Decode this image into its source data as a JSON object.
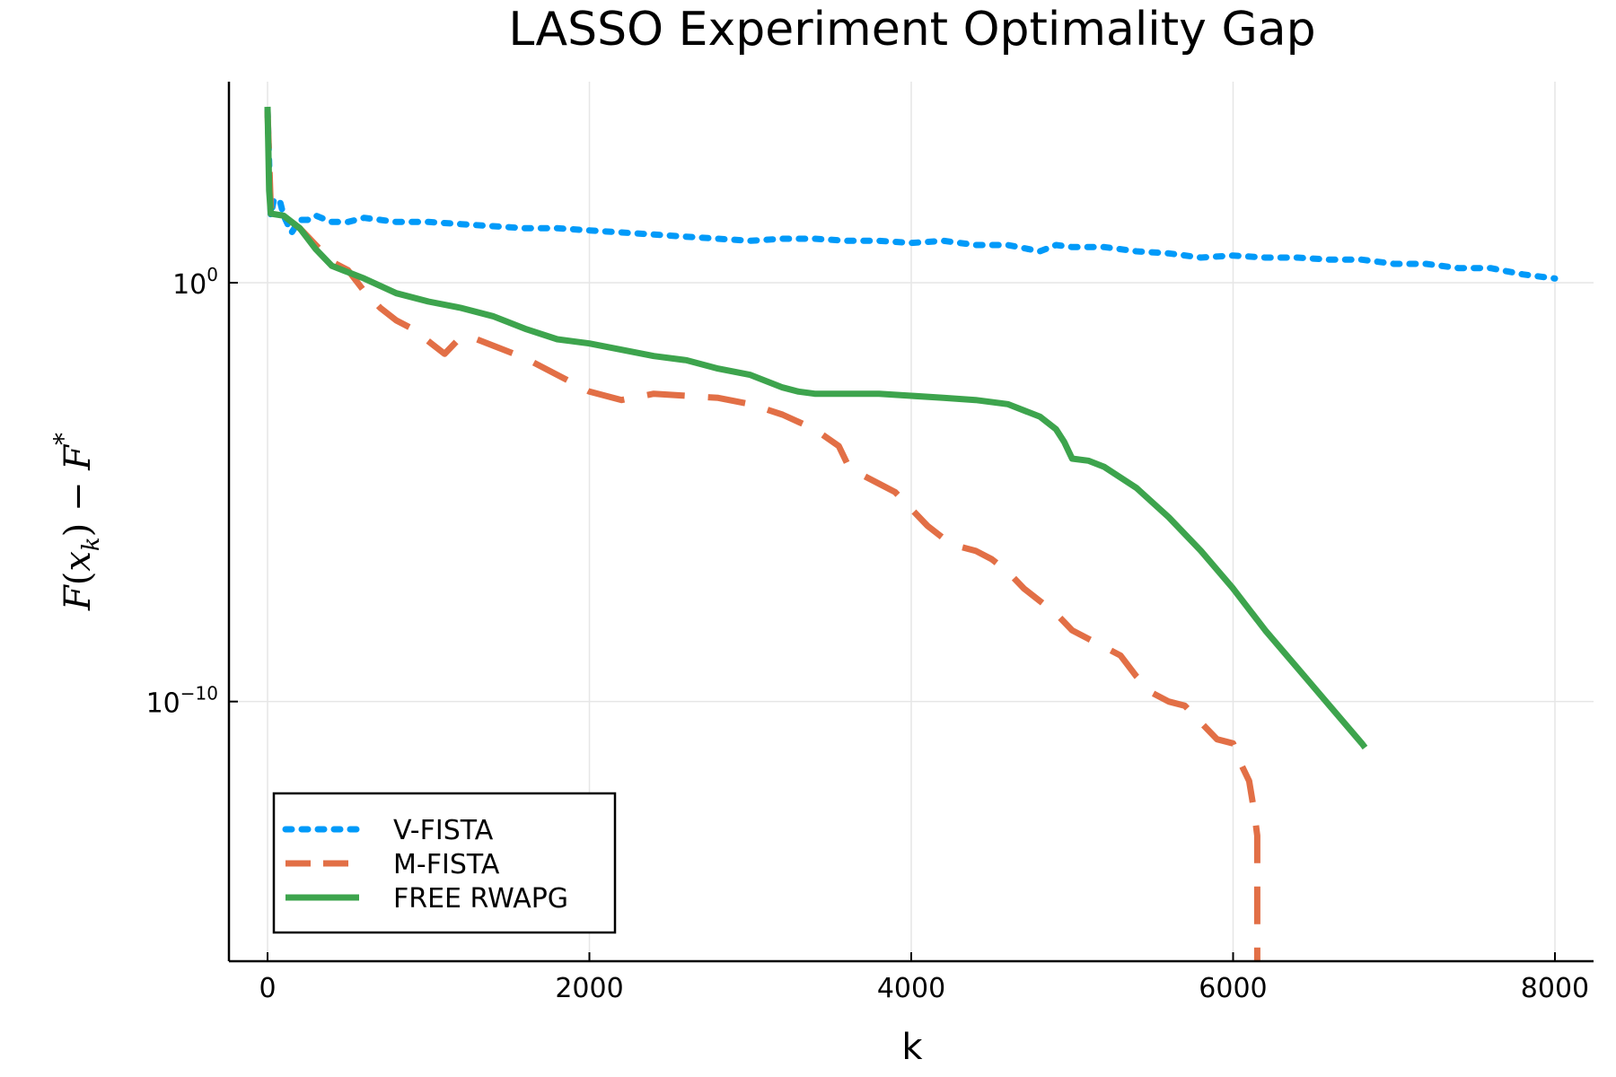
{
  "chart_data": {
    "type": "line",
    "title": "LASSO Experiment Optimality Gap",
    "xlabel": "k",
    "ylabel": "F(x_k) − F*",
    "ylabel_parts": {
      "F": "F",
      "open": "(",
      "x": "x",
      "sub": "k",
      "close": ")",
      "minus": " − ",
      "F2": "F",
      "sup": "*"
    },
    "xlim": [
      -240,
      8240
    ],
    "ylim_log10": [
      -16.2,
      4.8
    ],
    "yscale": "log",
    "grid": true,
    "legend_position": "bottom-left",
    "x_ticks": [
      {
        "value": 0,
        "label": "0"
      },
      {
        "value": 2000,
        "label": "2000"
      },
      {
        "value": 4000,
        "label": "4000"
      },
      {
        "value": 6000,
        "label": "6000"
      },
      {
        "value": 8000,
        "label": "8000"
      }
    ],
    "y_ticks": [
      {
        "log10": 0,
        "base": "10",
        "exp": "0"
      },
      {
        "log10": -10,
        "base": "10",
        "exp": "−10"
      }
    ],
    "series": [
      {
        "name": "V-FISTA",
        "color": "#009af9",
        "dash": "dotted",
        "points": [
          [
            0,
            4.1
          ],
          [
            20,
            1.6
          ],
          [
            40,
            2.0
          ],
          [
            80,
            1.9
          ],
          [
            100,
            1.6
          ],
          [
            150,
            1.2
          ],
          [
            200,
            1.5
          ],
          [
            250,
            1.5
          ],
          [
            300,
            1.6
          ],
          [
            400,
            1.45
          ],
          [
            500,
            1.45
          ],
          [
            600,
            1.55
          ],
          [
            800,
            1.45
          ],
          [
            1000,
            1.45
          ],
          [
            1200,
            1.4
          ],
          [
            1400,
            1.35
          ],
          [
            1600,
            1.3
          ],
          [
            1800,
            1.3
          ],
          [
            2000,
            1.25
          ],
          [
            2200,
            1.2
          ],
          [
            2400,
            1.15
          ],
          [
            2600,
            1.1
          ],
          [
            2800,
            1.05
          ],
          [
            3000,
            1.0
          ],
          [
            3200,
            1.05
          ],
          [
            3400,
            1.05
          ],
          [
            3600,
            1.0
          ],
          [
            3800,
            1.0
          ],
          [
            4000,
            0.95
          ],
          [
            4200,
            1.0
          ],
          [
            4400,
            0.9
          ],
          [
            4600,
            0.9
          ],
          [
            4800,
            0.75
          ],
          [
            4900,
            0.9
          ],
          [
            5000,
            0.85
          ],
          [
            5200,
            0.85
          ],
          [
            5400,
            0.75
          ],
          [
            5600,
            0.7
          ],
          [
            5800,
            0.6
          ],
          [
            6000,
            0.65
          ],
          [
            6200,
            0.6
          ],
          [
            6400,
            0.6
          ],
          [
            6600,
            0.55
          ],
          [
            6800,
            0.55
          ],
          [
            7000,
            0.45
          ],
          [
            7200,
            0.45
          ],
          [
            7400,
            0.35
          ],
          [
            7600,
            0.35
          ],
          [
            7800,
            0.2
          ],
          [
            8000,
            0.1
          ]
        ]
      },
      {
        "name": "M-FISTA",
        "color": "#e26f46",
        "dash": "dashed",
        "points": [
          [
            0,
            4.1
          ],
          [
            20,
            1.8
          ],
          [
            40,
            1.7
          ],
          [
            100,
            1.6
          ],
          [
            200,
            1.3
          ],
          [
            300,
            0.9
          ],
          [
            400,
            0.5
          ],
          [
            500,
            0.3
          ],
          [
            600,
            -0.2
          ],
          [
            700,
            -0.6
          ],
          [
            800,
            -0.9
          ],
          [
            900,
            -1.1
          ],
          [
            1000,
            -1.4
          ],
          [
            1100,
            -1.7
          ],
          [
            1200,
            -1.3
          ],
          [
            1300,
            -1.35
          ],
          [
            1400,
            -1.5
          ],
          [
            1600,
            -1.8
          ],
          [
            1800,
            -2.2
          ],
          [
            2000,
            -2.6
          ],
          [
            2200,
            -2.8
          ],
          [
            2400,
            -2.65
          ],
          [
            2600,
            -2.7
          ],
          [
            2800,
            -2.75
          ],
          [
            3000,
            -2.9
          ],
          [
            3200,
            -3.15
          ],
          [
            3400,
            -3.5
          ],
          [
            3550,
            -3.9
          ],
          [
            3600,
            -4.3
          ],
          [
            3650,
            -4.5
          ],
          [
            3800,
            -4.8
          ],
          [
            3900,
            -5.0
          ],
          [
            4000,
            -5.4
          ],
          [
            4100,
            -5.8
          ],
          [
            4200,
            -6.1
          ],
          [
            4300,
            -6.3
          ],
          [
            4400,
            -6.4
          ],
          [
            4500,
            -6.6
          ],
          [
            4600,
            -6.9
          ],
          [
            4700,
            -7.3
          ],
          [
            4800,
            -7.6
          ],
          [
            4900,
            -7.9
          ],
          [
            5000,
            -8.3
          ],
          [
            5100,
            -8.5
          ],
          [
            5200,
            -8.7
          ],
          [
            5300,
            -8.9
          ],
          [
            5400,
            -9.4
          ],
          [
            5500,
            -9.8
          ],
          [
            5600,
            -10.0
          ],
          [
            5700,
            -10.1
          ],
          [
            5800,
            -10.5
          ],
          [
            5900,
            -10.9
          ],
          [
            6000,
            -11.0
          ],
          [
            6050,
            -11.5
          ],
          [
            6100,
            -11.9
          ],
          [
            6130,
            -12.6
          ],
          [
            6150,
            -13.2
          ],
          [
            6150,
            -14.0
          ],
          [
            6150,
            -15.5
          ],
          [
            6150,
            -16.2
          ]
        ]
      },
      {
        "name": "FREE RWAPG",
        "color": "#3da44d",
        "dash": "solid",
        "points": [
          [
            0,
            4.2
          ],
          [
            10,
            2.2
          ],
          [
            20,
            1.65
          ],
          [
            100,
            1.6
          ],
          [
            200,
            1.3
          ],
          [
            300,
            0.8
          ],
          [
            400,
            0.4
          ],
          [
            500,
            0.25
          ],
          [
            600,
            0.1
          ],
          [
            800,
            -0.25
          ],
          [
            1000,
            -0.45
          ],
          [
            1200,
            -0.6
          ],
          [
            1400,
            -0.8
          ],
          [
            1600,
            -1.1
          ],
          [
            1800,
            -1.35
          ],
          [
            2000,
            -1.45
          ],
          [
            2200,
            -1.6
          ],
          [
            2400,
            -1.75
          ],
          [
            2600,
            -1.85
          ],
          [
            2800,
            -2.05
          ],
          [
            3000,
            -2.2
          ],
          [
            3200,
            -2.5
          ],
          [
            3300,
            -2.6
          ],
          [
            3400,
            -2.65
          ],
          [
            3600,
            -2.65
          ],
          [
            3800,
            -2.65
          ],
          [
            4000,
            -2.7
          ],
          [
            4200,
            -2.75
          ],
          [
            4400,
            -2.8
          ],
          [
            4600,
            -2.9
          ],
          [
            4800,
            -3.2
          ],
          [
            4900,
            -3.5
          ],
          [
            4950,
            -3.8
          ],
          [
            5000,
            -4.2
          ],
          [
            5100,
            -4.25
          ],
          [
            5200,
            -4.4
          ],
          [
            5400,
            -4.9
          ],
          [
            5600,
            -5.6
          ],
          [
            5800,
            -6.4
          ],
          [
            6000,
            -7.3
          ],
          [
            6200,
            -8.3
          ],
          [
            6400,
            -9.2
          ],
          [
            6600,
            -10.1
          ],
          [
            6800,
            -11.0
          ],
          [
            6820,
            -11.1
          ]
        ]
      }
    ]
  }
}
